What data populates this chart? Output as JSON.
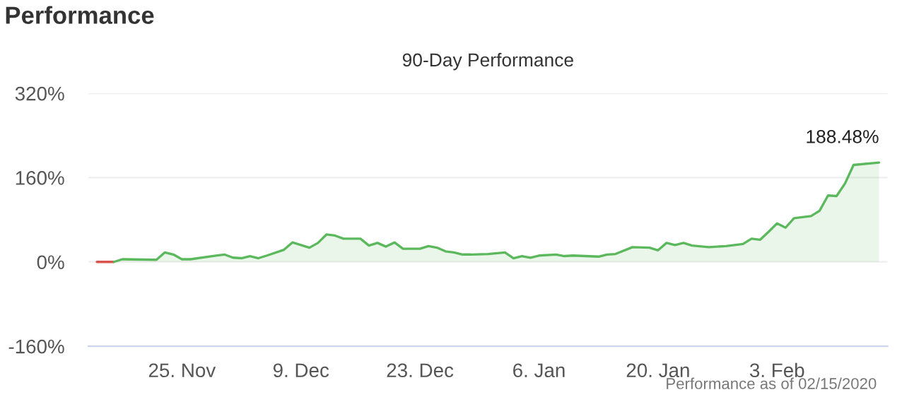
{
  "chart_data": {
    "type": "area",
    "title": "Performance",
    "subtitle": "90-Day Performance",
    "xlim": [
      "2019-11-14",
      "2020-02-16"
    ],
    "xticks": [
      {
        "value": "2019-11-25",
        "label": "25. Nov"
      },
      {
        "value": "2019-12-09",
        "label": "9. Dec"
      },
      {
        "value": "2019-12-23",
        "label": "23. Dec"
      },
      {
        "value": "2020-01-06",
        "label": "6. Jan"
      },
      {
        "value": "2020-01-20",
        "label": "20. Jan"
      },
      {
        "value": "2020-02-03",
        "label": "3. Feb"
      }
    ],
    "ylim": [
      -160,
      320
    ],
    "yticks": [
      {
        "value": -160,
        "label": "-160%"
      },
      {
        "value": 0,
        "label": "0%"
      },
      {
        "value": 160,
        "label": "160%"
      },
      {
        "value": 320,
        "label": "320%"
      }
    ],
    "grid": "y",
    "series": [
      {
        "type": "line",
        "color": "#d9534f",
        "x": [
          "2019-11-15",
          "2019-11-17"
        ],
        "values": [
          0,
          0
        ]
      },
      {
        "color": "#5cb85c",
        "x": [
          "2019-11-17",
          "2019-11-18",
          "2019-11-22",
          "2019-11-23",
          "2019-11-24",
          "2019-11-25",
          "2019-11-26",
          "2019-11-29",
          "2019-11-30",
          "2019-12-01",
          "2019-12-02",
          "2019-12-03",
          "2019-12-04",
          "2019-12-05",
          "2019-12-07",
          "2019-12-08",
          "2019-12-10",
          "2019-12-11",
          "2019-12-12",
          "2019-12-13",
          "2019-12-14",
          "2019-12-16",
          "2019-12-17",
          "2019-12-18",
          "2019-12-19",
          "2019-12-20",
          "2019-12-21",
          "2019-12-23",
          "2019-12-24",
          "2019-12-25",
          "2019-12-26",
          "2019-12-27",
          "2019-12-28",
          "2019-12-29",
          "2019-12-31",
          "2020-01-02",
          "2020-01-03",
          "2020-01-04",
          "2020-01-05",
          "2020-01-06",
          "2020-01-08",
          "2020-01-09",
          "2020-01-10",
          "2020-01-13",
          "2020-01-14",
          "2020-01-15",
          "2020-01-17",
          "2020-01-19",
          "2020-01-20",
          "2020-01-21",
          "2020-01-22",
          "2020-01-23",
          "2020-01-24",
          "2020-01-26",
          "2020-01-28",
          "2020-01-30",
          "2020-01-31",
          "2020-02-01",
          "2020-02-02",
          "2020-02-03",
          "2020-02-04",
          "2020-02-05",
          "2020-02-07",
          "2020-02-08",
          "2020-02-09",
          "2020-02-10",
          "2020-02-11",
          "2020-02-12",
          "2020-02-15"
        ],
        "values": [
          0,
          5,
          4,
          18,
          14,
          5,
          5,
          12,
          14,
          8,
          7,
          11,
          7,
          12,
          23,
          37,
          27,
          36,
          52,
          50,
          44,
          44,
          31,
          36,
          29,
          37,
          25,
          25,
          30,
          27,
          20,
          18,
          14,
          14,
          15,
          18,
          7,
          11,
          8,
          12,
          14,
          11,
          12,
          10,
          14,
          15,
          28,
          27,
          22,
          36,
          32,
          36,
          31,
          28,
          30,
          34,
          44,
          42,
          57,
          73,
          65,
          83,
          87,
          97,
          126,
          125,
          149,
          184,
          188.48
        ]
      }
    ],
    "annotations": [
      {
        "text": "188.48%",
        "x": "2020-02-15",
        "y": 188.48
      },
      "Performance as of 02/15/2020"
    ]
  }
}
